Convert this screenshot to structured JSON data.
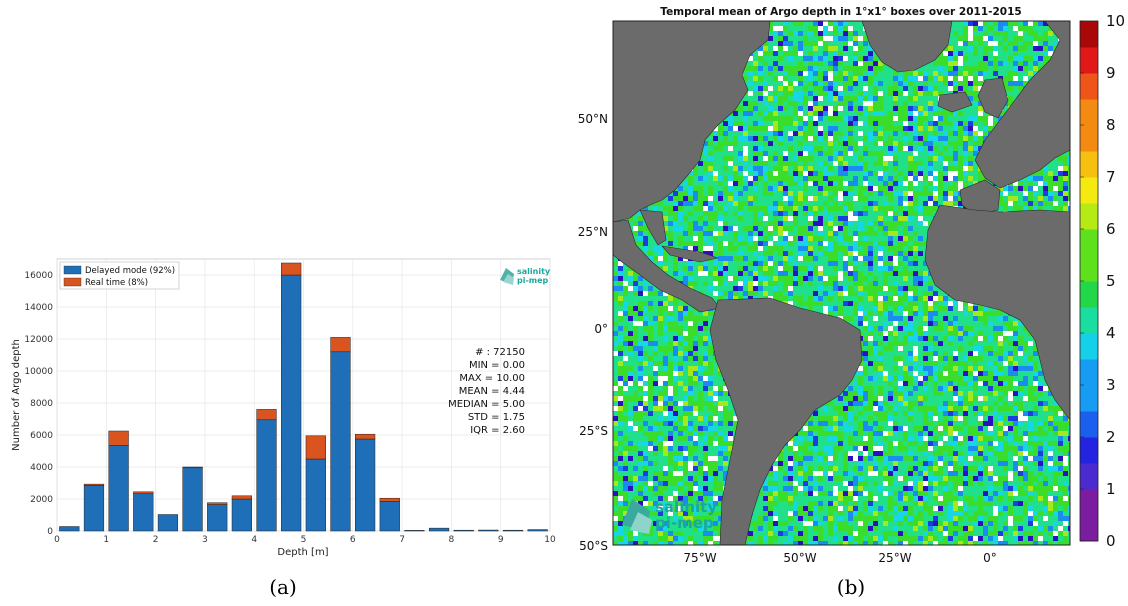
{
  "captions": {
    "a": "(a)",
    "b": "(b)"
  },
  "logo": {
    "line1": "salinity",
    "line2": "pi-mep"
  },
  "colors": {
    "delayed": "#1f6fb8",
    "realtime": "#d9541e",
    "land": "#6b6b6b",
    "grid": "#e6e6e6"
  },
  "chart_data": [
    {
      "type": "bar",
      "stacked": true,
      "xlabel": "Depth [m]",
      "ylabel": "Number of Argo depth",
      "xlim": [
        0,
        10
      ],
      "ylim": [
        0,
        17000
      ],
      "xticks": [
        "0",
        "1",
        "2",
        "3",
        "4",
        "5",
        "6",
        "7",
        "8",
        "9",
        "10"
      ],
      "yticks": [
        "0",
        "2000",
        "4000",
        "6000",
        "8000",
        "10000",
        "12000",
        "14000",
        "16000"
      ],
      "bin_width": 0.4,
      "x": [
        0.25,
        0.75,
        1.25,
        1.75,
        2.25,
        2.75,
        3.25,
        3.75,
        4.25,
        4.75,
        5.25,
        5.75,
        6.25,
        6.75,
        7.25,
        7.75,
        8.25,
        8.75,
        9.25,
        9.75
      ],
      "series": [
        {
          "name": "Delayed mode (92%)",
          "values": [
            280,
            2850,
            5350,
            2330,
            1030,
            3950,
            1650,
            2000,
            6950,
            16000,
            4500,
            11200,
            5750,
            1850,
            40,
            180,
            50,
            60,
            50,
            90
          ]
        },
        {
          "name": "Real time (8%)",
          "values": [
            0,
            80,
            900,
            120,
            0,
            50,
            120,
            200,
            650,
            750,
            1450,
            900,
            300,
            200,
            0,
            0,
            0,
            0,
            0,
            0
          ]
        }
      ],
      "legend_position": "top-left",
      "grid": true,
      "annotations": [
        "# : 72150",
        "MIN = 0.00",
        "MAX =  10.00",
        "MEAN = 4.44",
        "MEDIAN = 5.00",
        "STD = 1.75",
        "IQR = 2.60"
      ]
    },
    {
      "type": "heatmap",
      "title": "Temporal mean of Argo depth in 1°x1° boxes over 2011-2015",
      "x_ticks": [
        "75°W",
        "50°W",
        "25°W",
        "0°"
      ],
      "y_ticks": [
        "50°N",
        "25°N",
        "0°",
        "25°S",
        "50°S"
      ],
      "colorbar": {
        "min": 0,
        "max": 10,
        "ticks": [
          "0",
          "1",
          "2",
          "3",
          "4",
          "5",
          "6",
          "7",
          "8",
          "9",
          "10"
        ]
      },
      "dominant_value_range": [
        4,
        6
      ]
    }
  ]
}
